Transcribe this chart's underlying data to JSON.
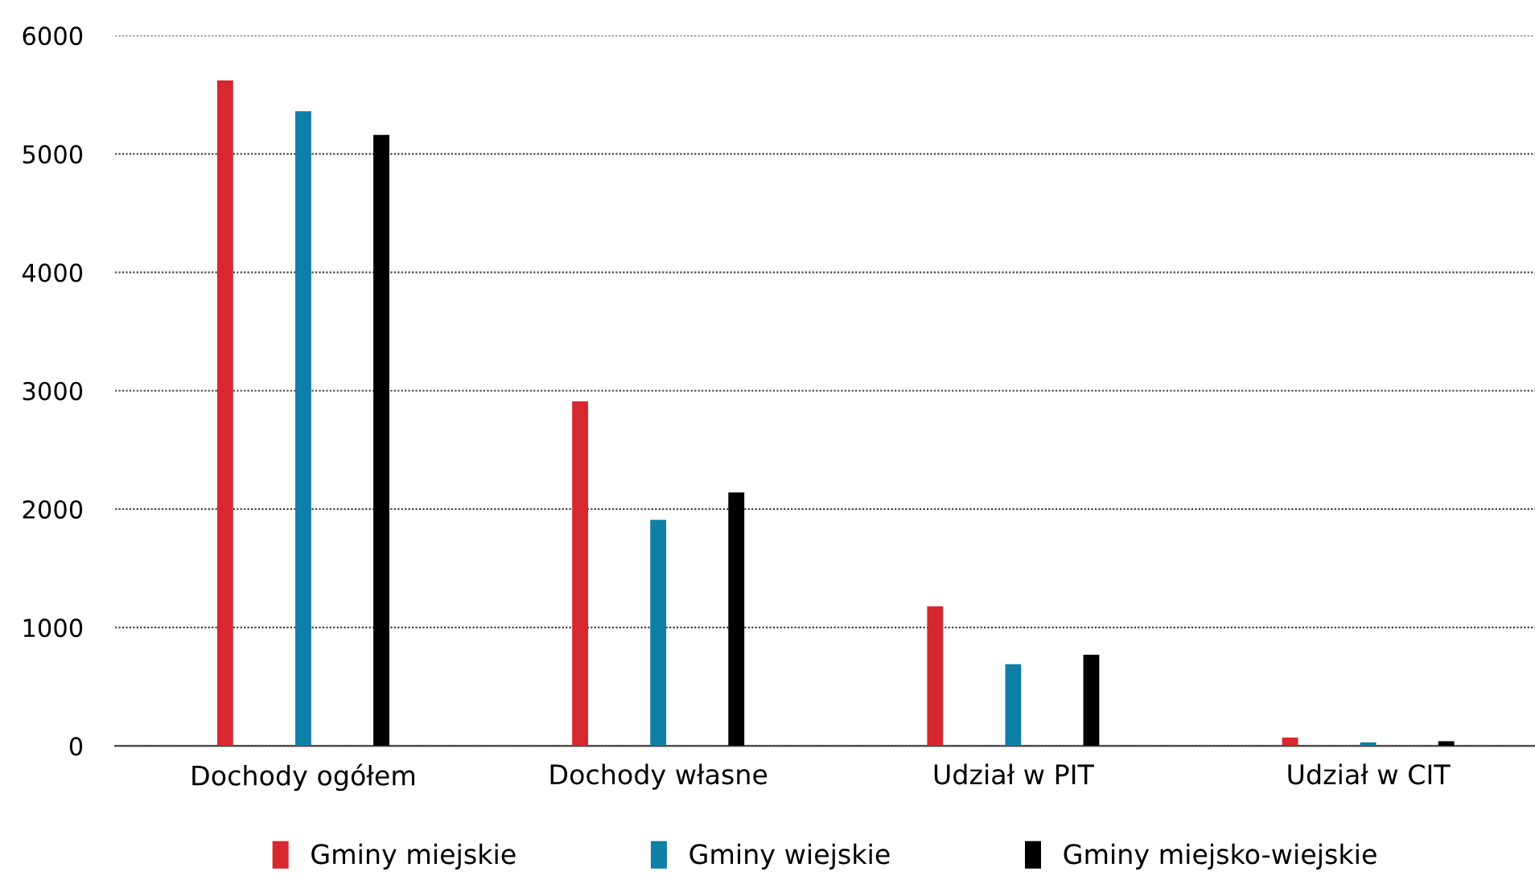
{
  "chart_data": {
    "type": "bar",
    "categories": [
      "Dochody ogółem",
      "Dochody własne",
      "Udział w PIT",
      "Udział w CIT"
    ],
    "series": [
      {
        "name": "Gminy miejskie",
        "color": "#d7282f",
        "values": [
          5620,
          2910,
          1180,
          70
        ]
      },
      {
        "name": "Gminy wiejskie",
        "color": "#0f7fa8",
        "values": [
          5360,
          1910,
          690,
          30
        ]
      },
      {
        "name": "Gminy miejsko-wiejskie",
        "color": "#000000",
        "values": [
          5160,
          2140,
          770,
          40
        ]
      }
    ],
    "ylim": [
      0,
      6000
    ],
    "yticks": [
      0,
      1000,
      2000,
      3000,
      4000,
      5000,
      6000
    ],
    "grid": "y",
    "legend": "bottom"
  }
}
